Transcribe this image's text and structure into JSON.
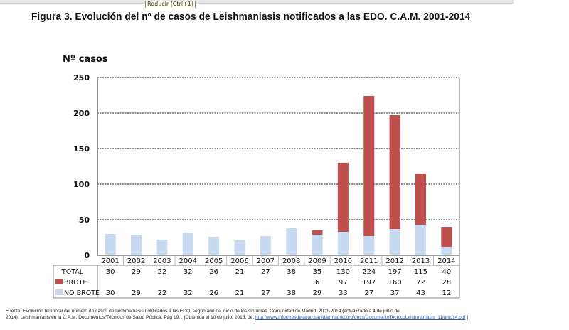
{
  "window": {
    "tooltip_text": "Reducir (Ctrl+1)"
  },
  "figure": {
    "title": "Figura  3. Evolución del nº de casos de Leishmaniasis notificados a las EDO. C.A.M. 2001-2014"
  },
  "chart_data": {
    "type": "bar",
    "stacked": true,
    "title": "Figura  3. Evolución del nº de casos de Leishmaniasis notificados a las EDO. C.A.M. 2001-2014",
    "ylabel": "Nº casos",
    "xlabel": "",
    "ylim": [
      0,
      250
    ],
    "yticks": [
      0,
      50,
      100,
      150,
      200,
      250
    ],
    "grid": true,
    "categories": [
      "2001",
      "2002",
      "2003",
      "2004",
      "2005",
      "2006",
      "2007",
      "2008",
      "2009",
      "2010",
      "2011",
      "2012",
      "2013",
      "2014"
    ],
    "series": [
      {
        "name": "NO BROTE",
        "color": "#c6d9f1",
        "values": [
          30,
          29,
          22,
          32,
          26,
          21,
          27,
          38,
          29,
          33,
          27,
          37,
          43,
          12
        ]
      },
      {
        "name": "BROTE",
        "color": "#c0504d",
        "values": [
          null,
          null,
          null,
          null,
          null,
          null,
          null,
          null,
          6,
          97,
          197,
          160,
          72,
          28
        ]
      }
    ],
    "totals": [
      30,
      29,
      22,
      32,
      26,
      21,
      27,
      38,
      35,
      130,
      224,
      197,
      115,
      40
    ],
    "table": {
      "rows": [
        {
          "label": "TOTAL",
          "legend": false,
          "values": [
            "30",
            "29",
            "22",
            "32",
            "26",
            "21",
            "27",
            "38",
            "35",
            "130",
            "224",
            "197",
            "115",
            "40"
          ]
        },
        {
          "label": "BROTE",
          "legend": true,
          "color": "#c0504d",
          "values": [
            "",
            "",
            "",
            "",
            "",
            "",
            "",
            "",
            "6",
            "97",
            "197",
            "160",
            "72",
            "28"
          ]
        },
        {
          "label": "NO BROTE",
          "legend": true,
          "color": "#c6d9f1",
          "values": [
            "30",
            "29",
            "22",
            "32",
            "26",
            "21",
            "27",
            "38",
            "29",
            "33",
            "27",
            "37",
            "43",
            "12"
          ]
        }
      ]
    },
    "legend": "left-of-table"
  },
  "footnote": {
    "text_line1": "Fuente: Evolución temporal del número de casos de leishmaniasis notificados a las EDO, según año de inicio de los síntomas. Comunidad de Madrid, 2001-2014 (actualizado a 4 de junio de",
    "text_line2": "2014).  Leishmaniasis en la C.A.M. Documentos Técnicos de Salud Pública. Pág 19. . [Obtenida el 10 de julio, 2015, de: ",
    "link_text": "http://www.informesdesalud.sanidadmadrid.org/docs/DocumentoTecnicoLeishmaniasis_11junio14.pdf",
    "tail": " ]"
  }
}
